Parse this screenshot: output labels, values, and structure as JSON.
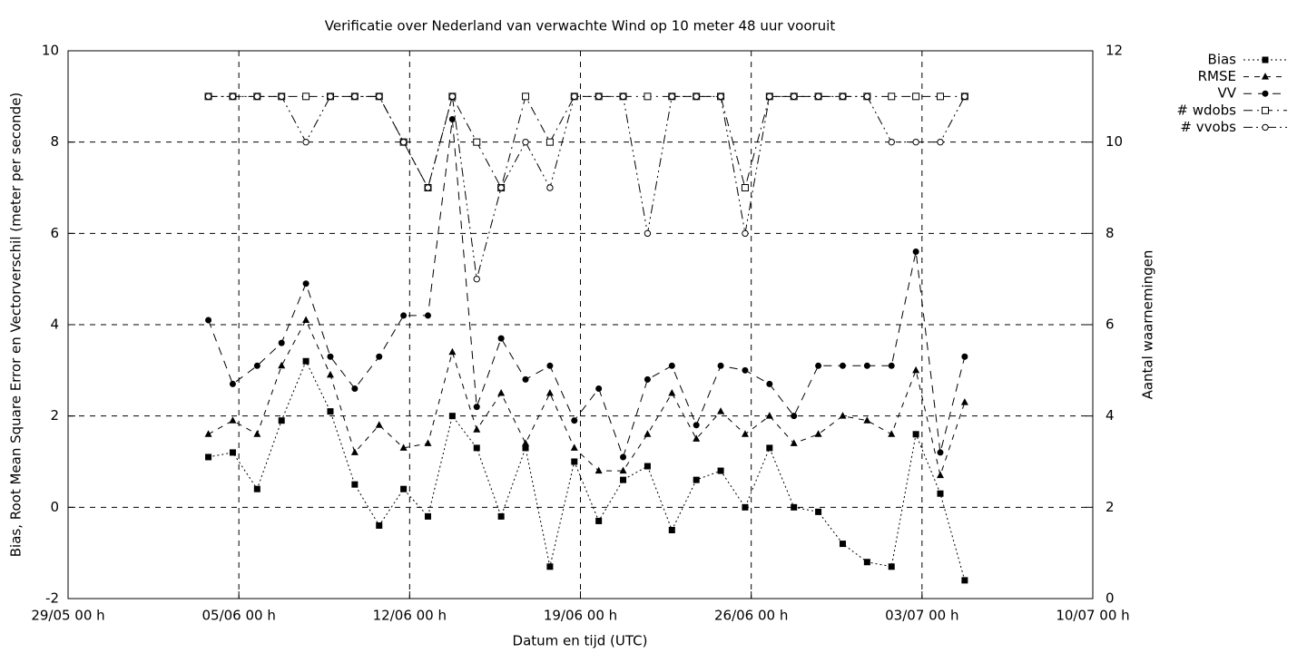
{
  "chart_data": {
    "type": "line",
    "title": "Verificatie over Nederland van verwachte Wind op 10 meter 48 uur vooruit",
    "x_label": "Datum en tijd (UTC)",
    "y_label": "Bias, Root Mean Square Error en Vectorverschil (meter per seconde)",
    "y2_label": "Aantal waarnemingen",
    "xlim": [
      "29/05 00 h",
      "10/07 00 h"
    ],
    "xticks": [
      "29/05 00 h",
      "05/06 00 h",
      "12/06 00 h",
      "19/06 00 h",
      "26/06 00 h",
      "03/07 00 h",
      "10/07 00 h"
    ],
    "ylim": [
      -2,
      10
    ],
    "yticks": [
      -2,
      0,
      2,
      4,
      6,
      8,
      10
    ],
    "y2lim": [
      0,
      12
    ],
    "y2ticks": [
      0,
      2,
      4,
      6,
      8,
      10,
      12
    ],
    "grid": true,
    "legend": "top-right",
    "x": [
      "03/06 18 h",
      "04/06 18 h",
      "05/06 18 h",
      "06/06 18 h",
      "07/06 18 h",
      "08/06 18 h",
      "09/06 18 h",
      "10/06 18 h",
      "11/06 18 h",
      "12/06 18 h",
      "13/06 18 h",
      "14/06 18 h",
      "15/06 18 h",
      "16/06 18 h",
      "17/06 18 h",
      "18/06 18 h",
      "19/06 18 h",
      "20/06 18 h",
      "21/06 18 h",
      "22/06 18 h",
      "23/06 18 h",
      "24/06 18 h",
      "25/06 18 h",
      "26/06 18 h",
      "27/06 18 h",
      "28/06 18 h",
      "29/06 18 h",
      "30/06 18 h",
      "01/07 18 h",
      "02/07 18 h",
      "03/07 18 h",
      "04/07 18 h"
    ],
    "series": [
      {
        "name": "Bias",
        "color": "#000000",
        "values": [
          1.1,
          1.2,
          0.4,
          1.9,
          3.2,
          2.1,
          0.5,
          -0.4,
          0.4,
          -0.2,
          2.0,
          1.3,
          -0.2,
          1.3,
          -1.3,
          1.0,
          -0.3,
          0.6,
          0.9,
          -0.5,
          0.6,
          0.8,
          0.0,
          1.3,
          0.0,
          -0.1,
          -0.8,
          -1.2,
          -1.3,
          1.6,
          0.3,
          -1.6
        ]
      },
      {
        "name": "RMSE",
        "color": "#000000",
        "values": [
          1.6,
          1.9,
          1.6,
          3.1,
          4.1,
          2.9,
          1.2,
          1.8,
          1.3,
          1.4,
          3.4,
          1.7,
          2.5,
          1.4,
          2.5,
          1.3,
          0.8,
          0.8,
          1.6,
          2.5,
          1.5,
          2.1,
          1.6,
          2.0,
          1.4,
          1.6,
          2.0,
          1.9,
          1.6,
          3.0,
          0.7,
          2.3
        ]
      },
      {
        "name": "VV",
        "color": "#000000",
        "values": [
          4.1,
          2.7,
          3.1,
          3.6,
          4.9,
          3.3,
          2.6,
          3.3,
          4.2,
          4.2,
          8.5,
          2.2,
          3.7,
          2.8,
          3.1,
          1.9,
          2.6,
          1.1,
          2.8,
          3.1,
          1.8,
          3.1,
          3.0,
          2.7,
          2.0,
          3.1,
          3.1,
          3.1,
          3.1,
          5.6,
          1.2,
          3.3
        ]
      },
      {
        "name": "# wdobs",
        "color": "#000000",
        "axis": "y2",
        "values": [
          11,
          11,
          11,
          11,
          11,
          11,
          11,
          11,
          10,
          9,
          11,
          10,
          9,
          11,
          10,
          11,
          11,
          11,
          11,
          11,
          11,
          11,
          9,
          11,
          11,
          11,
          11,
          11,
          11,
          11,
          11,
          11
        ]
      },
      {
        "name": "# vvobs",
        "color": "#000000",
        "axis": "y2",
        "values": [
          11,
          11,
          11,
          11,
          10,
          11,
          11,
          11,
          10,
          9,
          11,
          7,
          9,
          10,
          9,
          11,
          11,
          11,
          8,
          11,
          11,
          11,
          8,
          11,
          11,
          11,
          11,
          11,
          10,
          10,
          10,
          11
        ]
      }
    ]
  }
}
